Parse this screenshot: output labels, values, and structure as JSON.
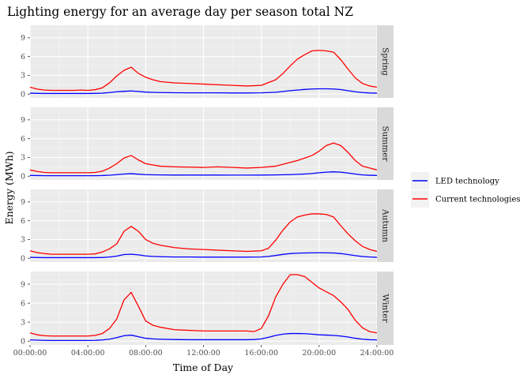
{
  "chart_data": {
    "type": "line",
    "title": "Lighting energy for an average day per season total NZ",
    "xlabel": "Time of Day",
    "ylabel": "Energy (MWh)",
    "x_ticks": [
      "00:00:00",
      "04:00:00",
      "08:00:00",
      "12:00:00",
      "16:00:00",
      "20:00:00",
      "24:00:00"
    ],
    "y_ticks": [
      0,
      3,
      6,
      9
    ],
    "xlim_hours": [
      0,
      24
    ],
    "ylim": [
      -0.6,
      11.0
    ],
    "grid": true,
    "legend_position": "right",
    "series_styles": [
      {
        "name": "LED technology",
        "color": "#0000ff"
      },
      {
        "name": "Current technologies",
        "color": "#ff0000"
      }
    ],
    "facets": [
      {
        "label": "Spring",
        "x_hours": [
          0,
          0.5,
          1,
          1.5,
          2,
          2.5,
          3,
          3.5,
          4,
          4.5,
          5,
          5.5,
          6,
          6.5,
          7,
          7.5,
          8,
          8.5,
          9,
          10,
          11,
          12,
          13,
          14,
          15,
          16,
          17,
          17.5,
          18,
          18.5,
          19,
          19.5,
          20,
          20.5,
          21,
          21.5,
          22,
          22.5,
          23,
          23.5,
          24
        ],
        "series": [
          {
            "name": "Current technologies",
            "values": [
              1.1,
              0.8,
              0.65,
              0.6,
              0.6,
              0.6,
              0.6,
              0.65,
              0.6,
              0.7,
              1.0,
              1.8,
              2.9,
              3.8,
              4.3,
              3.3,
              2.7,
              2.3,
              2.0,
              1.8,
              1.7,
              1.6,
              1.5,
              1.4,
              1.3,
              1.4,
              2.3,
              3.3,
              4.5,
              5.6,
              6.3,
              6.9,
              7.0,
              6.9,
              6.7,
              5.5,
              4.0,
              2.6,
              1.7,
              1.3,
              1.1
            ]
          },
          {
            "name": "LED technology",
            "values": [
              0.15,
              0.12,
              0.1,
              0.1,
              0.1,
              0.1,
              0.1,
              0.1,
              0.1,
              0.12,
              0.15,
              0.25,
              0.38,
              0.45,
              0.5,
              0.42,
              0.32,
              0.28,
              0.25,
              0.22,
              0.2,
              0.2,
              0.2,
              0.18,
              0.18,
              0.2,
              0.3,
              0.42,
              0.55,
              0.65,
              0.75,
              0.82,
              0.85,
              0.85,
              0.82,
              0.72,
              0.55,
              0.38,
              0.25,
              0.18,
              0.15
            ]
          }
        ]
      },
      {
        "label": "Summer",
        "x_hours": [
          0,
          0.5,
          1,
          1.5,
          2,
          2.5,
          3,
          3.5,
          4,
          4.5,
          5,
          5.5,
          6,
          6.5,
          7,
          7.5,
          8,
          8.5,
          9,
          10,
          11,
          12,
          13,
          14,
          15,
          16,
          17,
          18,
          18.5,
          19,
          19.5,
          20,
          20.5,
          21,
          21.5,
          22,
          22.5,
          23,
          23.5,
          24
        ],
        "series": [
          {
            "name": "Current technologies",
            "values": [
              1.0,
              0.75,
              0.6,
              0.55,
              0.55,
              0.55,
              0.55,
              0.55,
              0.55,
              0.6,
              0.8,
              1.3,
              2.0,
              2.9,
              3.3,
              2.6,
              2.0,
              1.8,
              1.6,
              1.5,
              1.45,
              1.4,
              1.5,
              1.4,
              1.3,
              1.4,
              1.6,
              2.2,
              2.5,
              2.9,
              3.3,
              4.0,
              4.9,
              5.3,
              4.9,
              3.8,
              2.5,
              1.6,
              1.3,
              1.0
            ]
          },
          {
            "name": "LED technology",
            "values": [
              0.12,
              0.1,
              0.08,
              0.08,
              0.08,
              0.08,
              0.08,
              0.08,
              0.08,
              0.08,
              0.1,
              0.16,
              0.25,
              0.35,
              0.4,
              0.32,
              0.25,
              0.22,
              0.2,
              0.18,
              0.18,
              0.18,
              0.18,
              0.17,
              0.17,
              0.18,
              0.2,
              0.25,
              0.3,
              0.35,
              0.42,
              0.55,
              0.65,
              0.7,
              0.65,
              0.5,
              0.35,
              0.2,
              0.15,
              0.12
            ]
          }
        ]
      },
      {
        "label": "Autumn",
        "x_hours": [
          0,
          0.5,
          1,
          1.5,
          2,
          2.5,
          3,
          3.5,
          4,
          4.5,
          5,
          5.5,
          6,
          6.5,
          7,
          7.5,
          8,
          8.5,
          9,
          10,
          11,
          12,
          13,
          14,
          15,
          16,
          16.5,
          17,
          17.5,
          18,
          18.5,
          19,
          19.5,
          20,
          20.5,
          21,
          21.5,
          22,
          22.5,
          23,
          23.5,
          24
        ],
        "series": [
          {
            "name": "Current technologies",
            "values": [
              1.2,
              0.9,
              0.75,
              0.65,
              0.65,
              0.65,
              0.65,
              0.65,
              0.65,
              0.7,
              1.0,
              1.5,
              2.3,
              4.3,
              5.1,
              4.3,
              3.0,
              2.4,
              2.1,
              1.7,
              1.5,
              1.4,
              1.3,
              1.2,
              1.1,
              1.2,
              1.6,
              2.9,
              4.5,
              5.8,
              6.6,
              6.9,
              7.1,
              7.1,
              7.0,
              6.6,
              5.2,
              3.9,
              2.8,
              1.9,
              1.4,
              1.1
            ]
          },
          {
            "name": "LED technology",
            "values": [
              0.15,
              0.12,
              0.1,
              0.1,
              0.1,
              0.1,
              0.1,
              0.1,
              0.1,
              0.1,
              0.12,
              0.2,
              0.35,
              0.6,
              0.65,
              0.55,
              0.38,
              0.3,
              0.25,
              0.2,
              0.2,
              0.18,
              0.18,
              0.18,
              0.18,
              0.2,
              0.3,
              0.45,
              0.62,
              0.75,
              0.82,
              0.85,
              0.87,
              0.88,
              0.87,
              0.85,
              0.75,
              0.6,
              0.42,
              0.28,
              0.2,
              0.15
            ]
          }
        ]
      },
      {
        "label": "Winter",
        "x_hours": [
          0,
          0.5,
          1,
          1.5,
          2,
          2.5,
          3,
          3.5,
          4,
          4.5,
          5,
          5.5,
          6,
          6.5,
          7,
          7.5,
          8,
          8.5,
          9,
          10,
          11,
          12,
          13,
          14,
          15,
          15.5,
          16,
          16.5,
          17,
          17.5,
          18,
          18.5,
          19,
          19.5,
          20,
          20.5,
          21,
          21.5,
          22,
          22.5,
          23,
          23.5,
          24
        ],
        "series": [
          {
            "name": "Current technologies",
            "values": [
              1.3,
              1.0,
              0.85,
              0.8,
              0.8,
              0.8,
              0.8,
              0.8,
              0.8,
              0.9,
              1.2,
              2.0,
              3.5,
              6.5,
              7.7,
              5.5,
              3.2,
              2.5,
              2.2,
              1.8,
              1.7,
              1.6,
              1.6,
              1.6,
              1.6,
              1.5,
              2.0,
              4.0,
              7.0,
              9.0,
              10.5,
              10.5,
              10.2,
              9.3,
              8.4,
              7.8,
              7.2,
              6.2,
              5.0,
              3.3,
              2.1,
              1.5,
              1.3
            ]
          },
          {
            "name": "LED technology",
            "values": [
              0.2,
              0.15,
              0.12,
              0.1,
              0.1,
              0.1,
              0.1,
              0.1,
              0.1,
              0.12,
              0.18,
              0.3,
              0.55,
              0.85,
              0.95,
              0.7,
              0.45,
              0.35,
              0.3,
              0.25,
              0.22,
              0.22,
              0.22,
              0.22,
              0.22,
              0.25,
              0.35,
              0.6,
              0.9,
              1.1,
              1.2,
              1.2,
              1.18,
              1.1,
              1.0,
              0.95,
              0.9,
              0.8,
              0.65,
              0.45,
              0.3,
              0.22,
              0.2
            ]
          }
        ]
      }
    ]
  }
}
